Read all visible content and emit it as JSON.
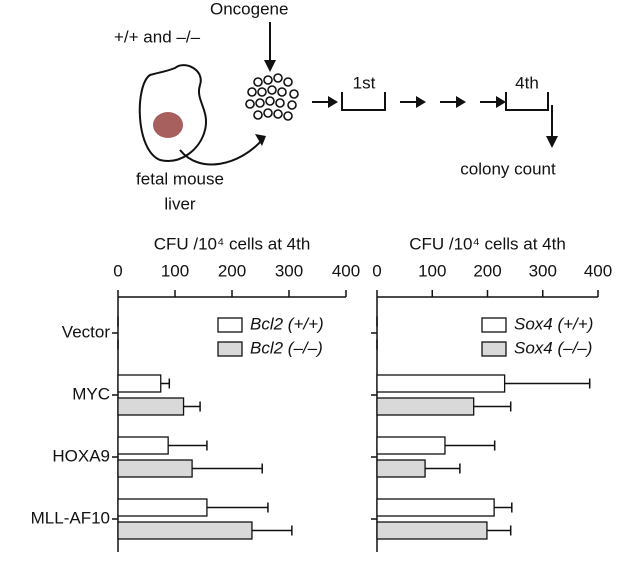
{
  "diagram": {
    "genotypes": "+/+ and –/–",
    "oncogene": "Oncogene",
    "source_line1": "fetal mouse",
    "source_line2": "liver",
    "round_first": "1st",
    "round_last": "4th",
    "readout": "colony count"
  },
  "chart_data": [
    {
      "type": "hbar",
      "xlabel": "CFU /10⁴ cells at 4th",
      "categories": [
        "Vector",
        "MYC",
        "HOXA9",
        "MLL-AF10"
      ],
      "xlim": [
        0,
        400
      ],
      "xticks": [
        0,
        100,
        200,
        300,
        400
      ],
      "legend": "top-right",
      "series": [
        {
          "name": "Bcl2 (+/+)",
          "color": "#ffffff",
          "values": [
            0,
            75,
            88,
            156
          ],
          "errors": [
            0,
            15,
            68,
            107
          ]
        },
        {
          "name": "Bcl2 (–/–)",
          "color": "#d9d9d9",
          "values": [
            0,
            115,
            130,
            235
          ],
          "errors": [
            0,
            29,
            123,
            70
          ]
        }
      ]
    },
    {
      "type": "hbar",
      "xlabel": "CFU /10⁴ cells at 4th",
      "categories": [
        "Vector",
        "MYC",
        "HOXA9",
        "MLL-AF10"
      ],
      "xlim": [
        0,
        400
      ],
      "xticks": [
        0,
        100,
        200,
        300,
        400
      ],
      "legend": "top-right",
      "series": [
        {
          "name": "Sox4 (+/+)",
          "color": "#ffffff",
          "values": [
            0,
            231,
            123,
            212
          ],
          "errors": [
            0,
            154,
            90,
            32
          ]
        },
        {
          "name": "Sox4 (–/–)",
          "color": "#d9d9d9",
          "values": [
            0,
            175,
            87,
            199
          ],
          "errors": [
            0,
            67,
            63,
            43
          ]
        }
      ]
    }
  ]
}
